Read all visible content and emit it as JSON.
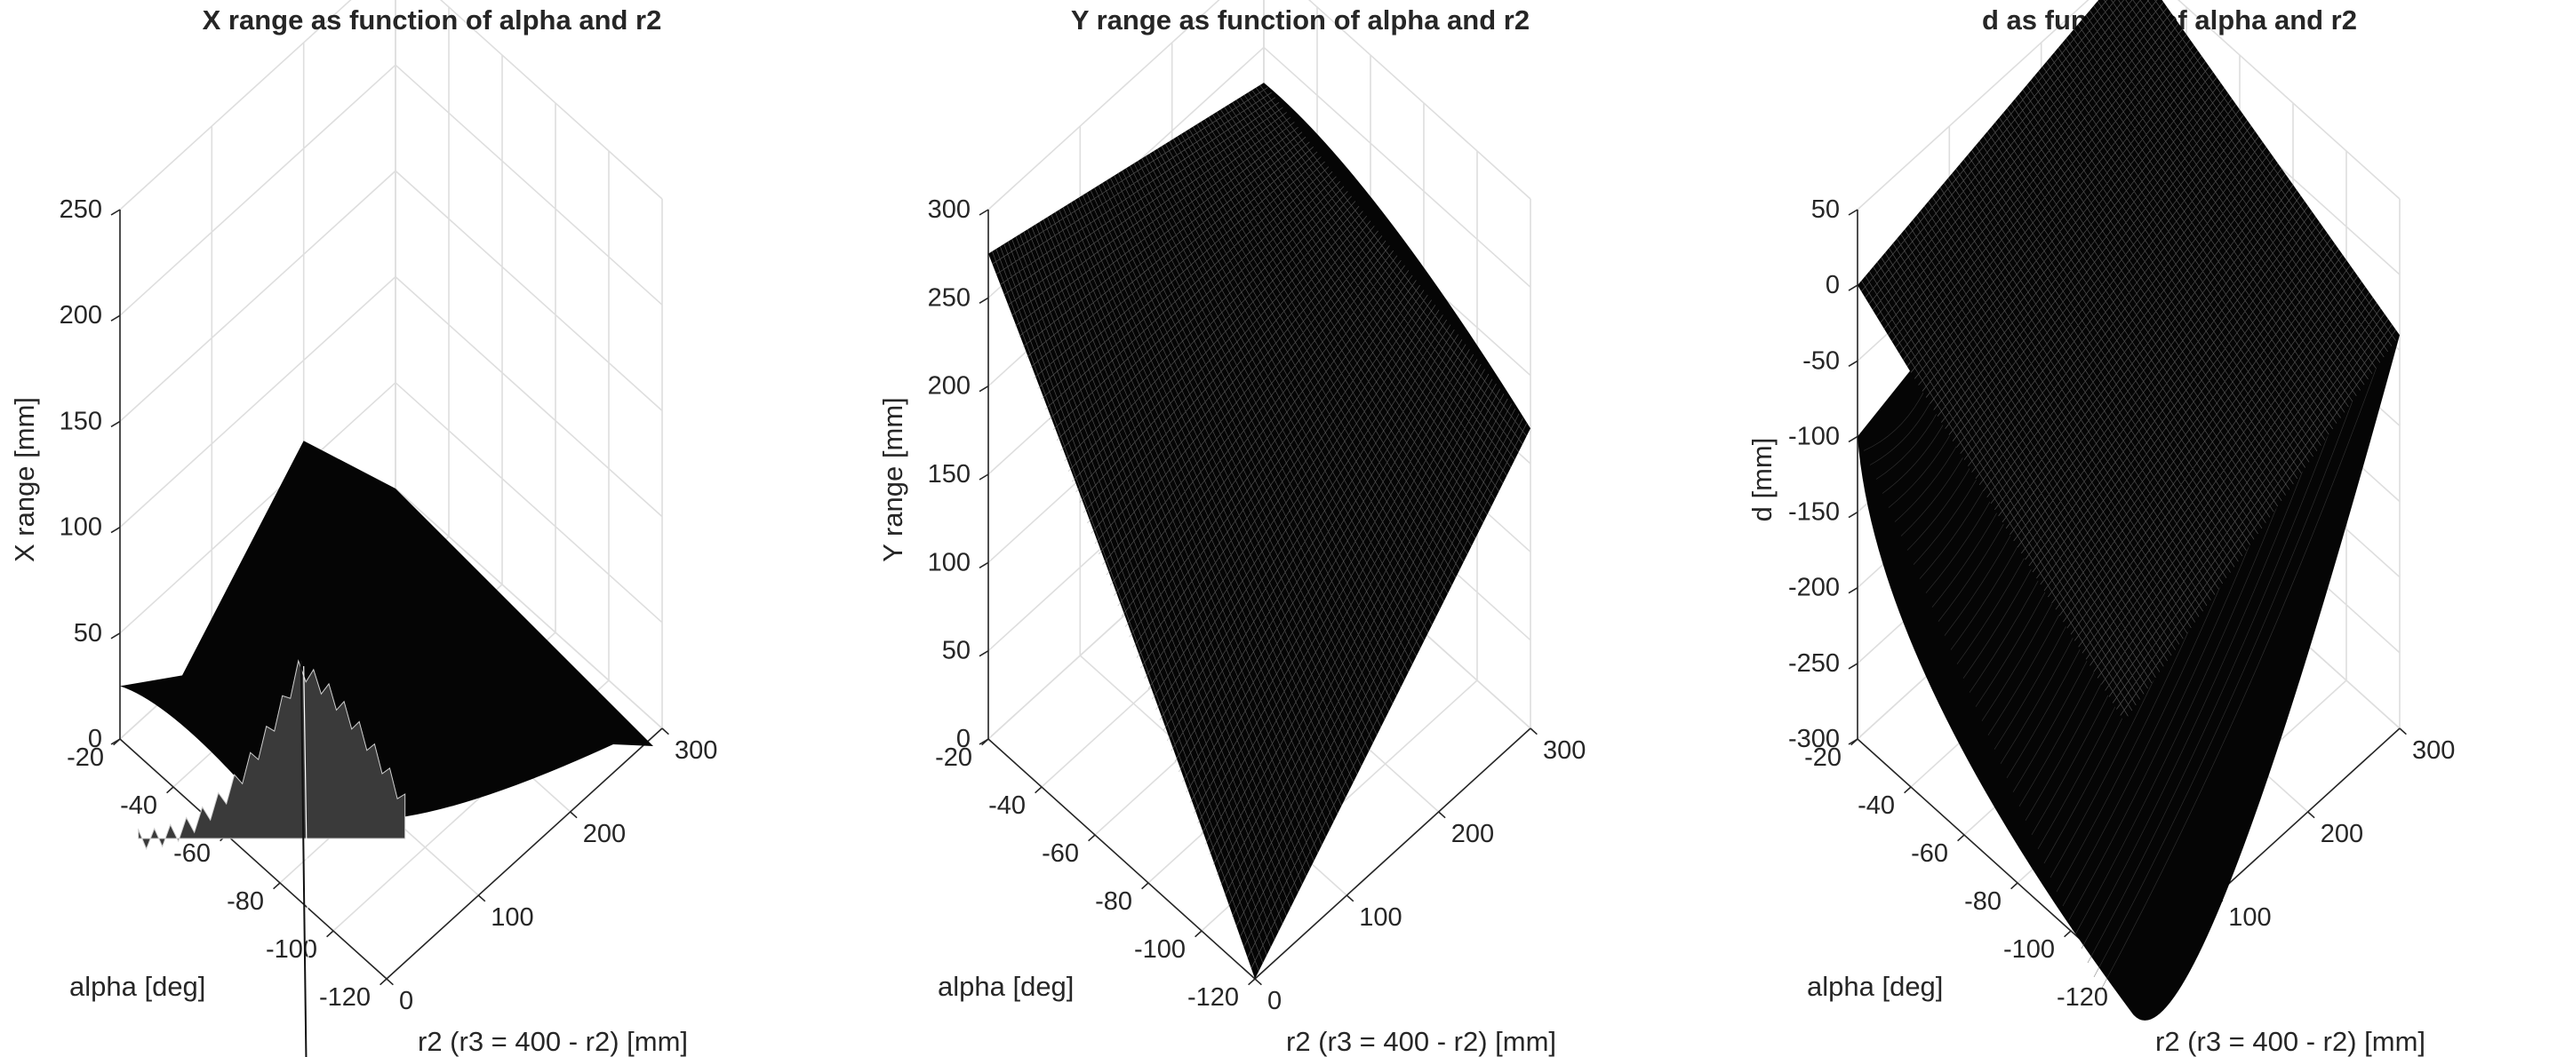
{
  "chart_data": [
    {
      "type": "surface",
      "title": "X range as function of alpha and r2",
      "xlabel": "r2 (r3 = 400 - r2) [mm]",
      "ylabel": "alpha [deg]",
      "zlabel": "X range [mm]",
      "xlim": [
        0,
        300
      ],
      "ylim": [
        -120,
        -20
      ],
      "zlim": [
        0,
        250
      ],
      "xticks": [
        "0",
        "100",
        "200",
        "300"
      ],
      "yticks": [
        "-20",
        "-40",
        "-60",
        "-80",
        "-100",
        "-120"
      ],
      "zticks": [
        "0",
        "50",
        "100",
        "150",
        "200",
        "250"
      ],
      "grid": true,
      "colormap": "gray",
      "surface_points": [
        {
          "r2": 0,
          "alpha": -20,
          "z": 25
        },
        {
          "r2": 0,
          "alpha": -120,
          "z": 0
        },
        {
          "r2": 20,
          "alpha": -80,
          "z": 97
        },
        {
          "r2": 20,
          "alpha": -82,
          "z": 0
        },
        {
          "r2": 200,
          "alpha": -20,
          "z": 62
        },
        {
          "r2": 300,
          "alpha": -20,
          "z": 0
        },
        {
          "r2": 300,
          "alpha": -120,
          "z": 0
        }
      ]
    },
    {
      "type": "surface",
      "title": "Y range as function of alpha and r2",
      "xlabel": "r2 (r3 = 400 - r2) [mm]",
      "ylabel": "alpha [deg]",
      "zlabel": "Y range [mm]",
      "xlim": [
        0,
        300
      ],
      "ylim": [
        -120,
        -20
      ],
      "zlim": [
        0,
        300
      ],
      "xticks": [
        "0",
        "100",
        "200",
        "300"
      ],
      "yticks": [
        "-20",
        "-40",
        "-60",
        "-80",
        "-100",
        "-120"
      ],
      "zticks": [
        "0",
        "50",
        "100",
        "150",
        "200",
        "250",
        "300"
      ],
      "grid": true,
      "colormap": "gray",
      "corners": [
        {
          "r2": 0,
          "alpha": -20,
          "z": 275
        },
        {
          "r2": 300,
          "alpha": -20,
          "z": 230
        },
        {
          "r2": 300,
          "alpha": -120,
          "z": 170
        },
        {
          "r2": 0,
          "alpha": -120,
          "z": 0
        }
      ]
    },
    {
      "type": "surface",
      "title": "d as function of alpha and r2",
      "xlabel": "r2 (r3 = 400 - r2) [mm]",
      "ylabel": "alpha [deg]",
      "zlabel": "d [mm]",
      "xlim": [
        0,
        300
      ],
      "ylim": [
        -120,
        -20
      ],
      "zlim": [
        -300,
        50
      ],
      "xticks": [
        "0",
        "100",
        "200",
        "300"
      ],
      "yticks": [
        "-20",
        "-40",
        "-60",
        "-80",
        "-100",
        "-120"
      ],
      "zticks": [
        "50",
        "0",
        "-50",
        "-100",
        "-150",
        "-200",
        "-250",
        "-300"
      ],
      "grid": true,
      "colormap": "gray",
      "surfaces": [
        {
          "name": "",
          "corners": [
            {
              "r2": 0,
              "alpha": -20,
              "z": 0
            },
            {
              "r2": 300,
              "alpha": -20,
              "z": 50
            },
            {
              "r2": 300,
              "alpha": -120,
              "z": -40
            },
            {
              "r2": 0,
              "alpha": -120,
              "z": -130
            }
          ]
        },
        {
          "name": "",
          "corners": [
            {
              "r2": 0,
              "alpha": -20,
              "z": -100
            },
            {
              "r2": 0,
              "alpha": -120,
              "z": -300
            },
            {
              "r2": 300,
              "alpha": -120,
              "z": -40
            }
          ]
        }
      ]
    }
  ]
}
